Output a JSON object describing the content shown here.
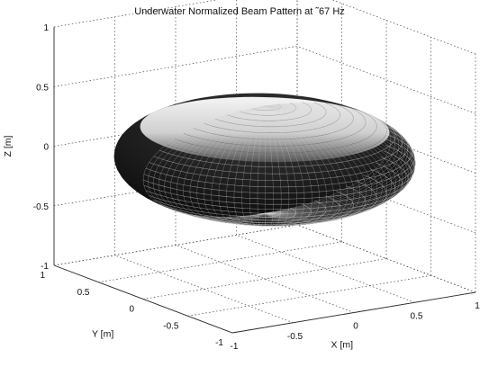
{
  "chart_data": {
    "type": "surface3d",
    "title": "Underwater Normalized Beam Pattern at ˜67 Hz",
    "xlabel": "X [m]",
    "ylabel": "Y [m]",
    "zlabel": "Z [m]",
    "xlim": [
      -1,
      1
    ],
    "ylim": [
      -1,
      1
    ],
    "zlim": [
      -1,
      1
    ],
    "xticks": [
      "-1",
      "-0.5",
      "0",
      "0.5",
      "1"
    ],
    "yticks": [
      "-1",
      "-0.5",
      "0",
      "0.5",
      "1"
    ],
    "zticks": [
      "-1",
      "-0.5",
      "0",
      "0.5",
      "1"
    ],
    "grid": true,
    "box": true,
    "surface": {
      "shape": "oblate spheroid (toroidal dipole pattern)",
      "horizontal_radius": 1,
      "vertical_radius": 0.45,
      "mesh": "dense wireframe",
      "edge_color": "#111111",
      "highlight_color": "#ffffff"
    }
  }
}
